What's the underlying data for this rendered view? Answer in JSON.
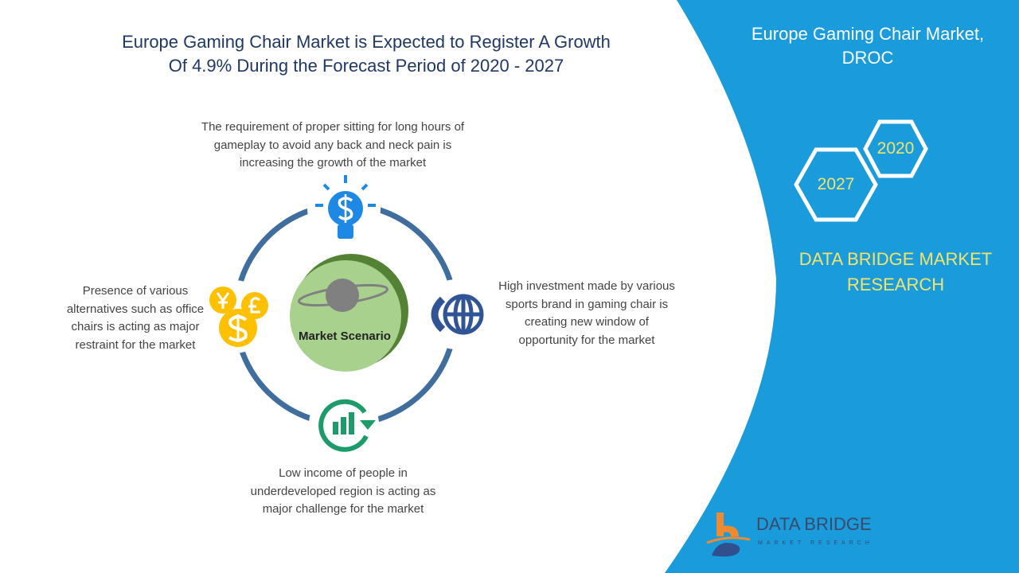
{
  "title": {
    "line1": "Europe Gaming Chair Market is Expected to Register A Growth",
    "line2": "Of 4.9% During the Forecast Period of 2020 - 2027"
  },
  "panel": {
    "title_line1": "Europe Gaming Chair Market,",
    "title_line2": "DROC",
    "hex_years": [
      "2020",
      "2027"
    ],
    "brand_line1": "DATA BRIDGE MARKET",
    "brand_line2": "RESEARCH",
    "logo_name": "DATA BRIDGE",
    "logo_sub": "MARKET RESEARCH"
  },
  "center": {
    "label": "Market Scenario"
  },
  "drivers": {
    "top": "The requirement of proper sitting for long hours of gameplay to avoid any back and neck pain is increasing the growth of the market",
    "right": "High investment made by various sports brand in gaming chair is creating new window of opportunity for the market",
    "bottom": "Low income of people in underdeveloped region is acting as major challenge for the market",
    "left": "Presence of various alternatives such as office chairs is acting as major restraint for the market"
  },
  "colors": {
    "panel": "#1a9bdc",
    "ring": "#3f6e9e",
    "center": "#a9d18e",
    "accent": "#f2e46a"
  }
}
